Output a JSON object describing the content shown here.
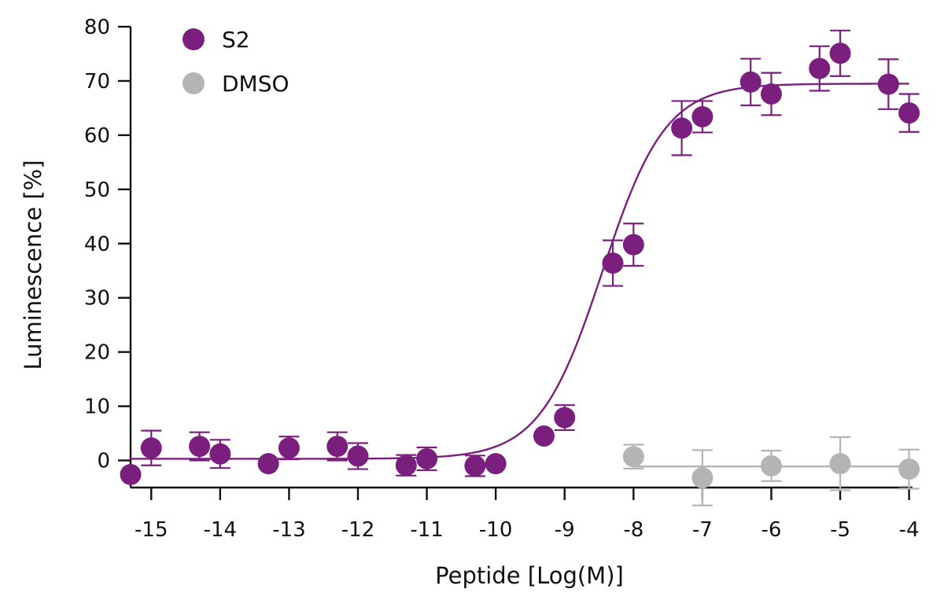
{
  "chart_data": {
    "type": "scatter",
    "xlabel": "Peptide [Log(M)]",
    "ylabel": "Luminescence [%]",
    "xlim": [
      -15.3,
      -3.95
    ],
    "ylim": [
      -5,
      80
    ],
    "xticks": [
      -15,
      -14,
      -13,
      -12,
      -11,
      -10,
      -9,
      -8,
      -7,
      -6,
      -5,
      -4
    ],
    "yticks": [
      0,
      10,
      20,
      30,
      40,
      50,
      60,
      70,
      80
    ],
    "xtick_labels": [
      "-15",
      "-14",
      "-13",
      "-12",
      "-11",
      "-10",
      "-9",
      "-8",
      "-7",
      "-6",
      "-5",
      "-4"
    ],
    "ytick_labels": [
      "0",
      "10",
      "20",
      "30",
      "40",
      "50",
      "60",
      "70",
      "80"
    ],
    "grid": false,
    "legend_position": "top-left",
    "series": [
      {
        "name": "S2",
        "color": "#7a1f7e",
        "x": [
          -15.3,
          -15,
          -14.3,
          -14,
          -13.3,
          -13,
          -12.3,
          -12,
          -11.3,
          -11,
          -10.3,
          -10,
          -9.3,
          -9,
          -8.3,
          -8,
          -7.3,
          -7,
          -6.3,
          -6,
          -5.3,
          -5,
          -4.3,
          -4
        ],
        "y": [
          -2.6,
          2.3,
          2.6,
          1.2,
          -0.6,
          2.3,
          2.6,
          0.8,
          -0.9,
          0.3,
          -1.0,
          -0.6,
          4.5,
          7.9,
          36.4,
          39.8,
          61.3,
          63.4,
          69.8,
          67.6,
          72.3,
          75.1,
          69.4,
          64.1
        ],
        "err": [
          0,
          3.2,
          2.6,
          2.6,
          0,
          2.1,
          2.6,
          2.4,
          1.9,
          2.1,
          1.9,
          0,
          0,
          2.3,
          4.2,
          3.9,
          5.0,
          2.9,
          4.3,
          3.9,
          4.1,
          4.2,
          4.6,
          3.5
        ],
        "fit": {
          "bottom": 0.3,
          "top": 69.5,
          "logEC50": -8.45,
          "hill": 0.95
        }
      },
      {
        "name": "DMSO",
        "color": "#b4b4b4",
        "x": [
          -8,
          -7,
          -6,
          -5,
          -4
        ],
        "y": [
          0.7,
          -3.2,
          -1.0,
          -0.6,
          -1.6
        ],
        "err": [
          2.2,
          5.1,
          2.8,
          4.9,
          3.6
        ],
        "fit": {
          "mean": -1.1
        }
      }
    ]
  }
}
